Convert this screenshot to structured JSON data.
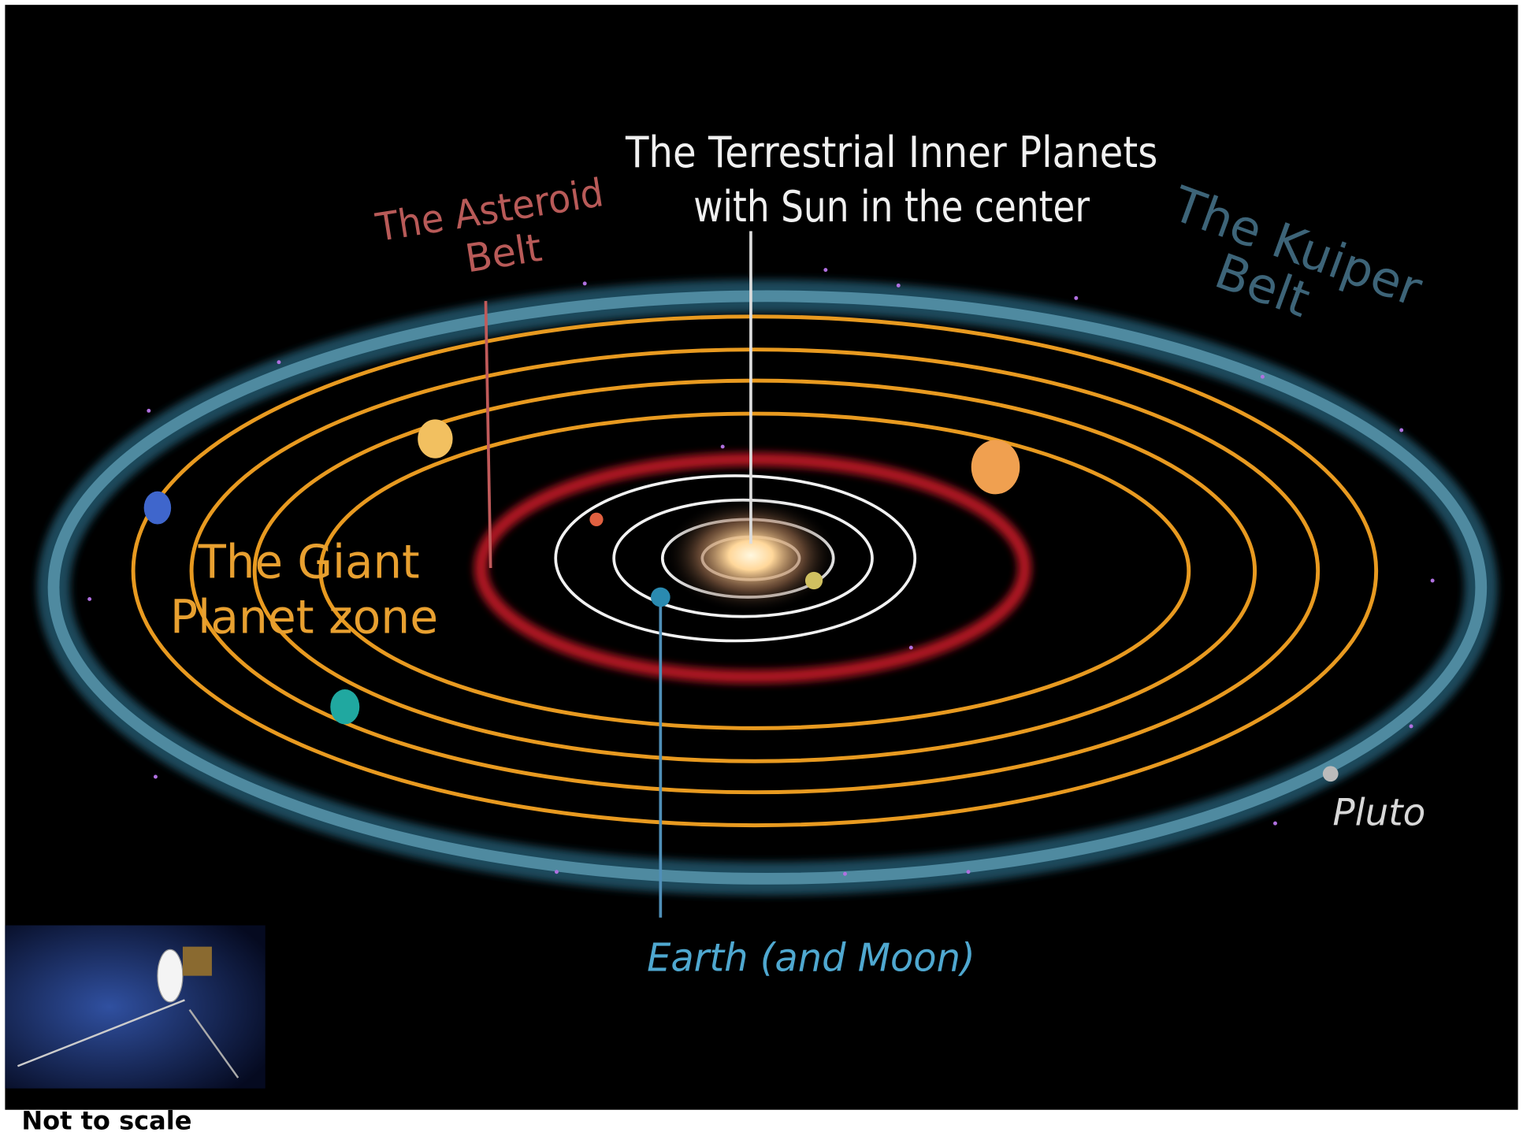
{
  "labels": {
    "terrestrial": [
      "The Terrestrial Inner Planets",
      "with Sun in the center"
    ],
    "asteroid": [
      "The Asteroid",
      "Belt"
    ],
    "kuiper": [
      "The Kuiper",
      "Belt"
    ],
    "giant": [
      "The Giant",
      "Planet zone"
    ],
    "pluto": "Pluto",
    "earth": "Earth (and Moon)"
  },
  "caption": "Not to scale"
}
